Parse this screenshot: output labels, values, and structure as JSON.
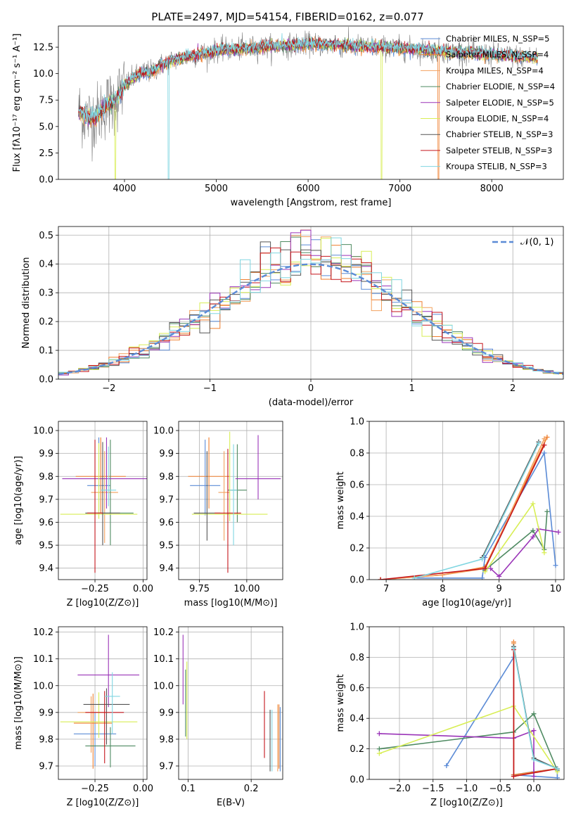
{
  "page": {
    "title": "PLATE=2497, MJD=54154, FIBERID=0162, z=0.077"
  },
  "colors": {
    "Chabrier MILES": "#5b8bd6",
    "Salpeter MILES": "#ef7e2e",
    "Kroupa MILES": "#f2a15e",
    "Chabrier ELODIE": "#4e8a61",
    "Salpeter ELODIE": "#9a34b8",
    "Kroupa ELODIE": "#d8ee55",
    "Chabrier STELIB": "#555555",
    "Salpeter STELIB": "#c5161c",
    "Kroupa STELIB": "#80d6e1",
    "data": "#808080",
    "normal": "#5b8bd6"
  },
  "chart_data": [
    {
      "id": "spectrum",
      "type": "line",
      "title": "PLATE=2497, MJD=54154, FIBERID=0162, z=0.077",
      "xlabel": "wavelength [Angstrom, rest frame]",
      "ylabel": "Flux [fλ10⁻¹⁷ erg cm⁻² s⁻¹ A⁻¹]",
      "xlim": [
        3280,
        8780
      ],
      "ylim": [
        0,
        14.5
      ],
      "xticks": [
        4000,
        5000,
        6000,
        7000,
        8000
      ],
      "xtick_labels": [
        "4000",
        "5000",
        "6000",
        "7000",
        "8000"
      ],
      "yticks": [
        0,
        2.5,
        5,
        7.5,
        10,
        12.5
      ],
      "ytick_labels": [
        "0.0",
        "2.5",
        "5.0",
        "7.5",
        "10.0",
        "12.5"
      ],
      "legend": [
        "Chabrier MILES, N_SSP=5",
        "Salpeter MILES, N_SSP=4",
        "Kroupa MILES, N_SSP=4",
        "Chabrier ELODIE, N_SSP=4",
        "Salpeter ELODIE, N_SSP=5",
        "Kroupa ELODIE, N_SSP=4",
        "Chabrier STELIB, N_SSP=3",
        "Salpeter STELIB, N_SSP=3",
        "Kroupa STELIB, N_SSP=3"
      ],
      "legend_placement": "right",
      "continuum": {
        "x": [
          3500,
          3600,
          3700,
          3800,
          3900,
          4000,
          4100,
          4200,
          4300,
          4400,
          4500,
          4700,
          5000,
          5500,
          6000,
          6500,
          7000,
          7500,
          8000,
          8500
        ],
        "y": [
          6.5,
          5.8,
          6.0,
          7.0,
          7.4,
          8.9,
          9.6,
          10.1,
          10.2,
          10.8,
          11.2,
          11.6,
          12.2,
          12.5,
          12.8,
          12.6,
          12.4,
          12.1,
          11.8,
          11.5
        ]
      },
      "drops": [
        {
          "model": "Kroupa ELODIE",
          "x": 3900
        },
        {
          "model": "Kroupa STELIB",
          "x": 4480
        },
        {
          "model": "Kroupa ELODIE",
          "x": 6800
        },
        {
          "model": "Salpeter MILES",
          "x": 7420
        }
      ]
    },
    {
      "id": "residuals",
      "type": "histogram",
      "xlabel": "(data-model)/error",
      "ylabel": "Normed distribution",
      "xlim": [
        -2.5,
        2.5
      ],
      "ylim": [
        0,
        0.53
      ],
      "xticks": [
        -2,
        -1,
        0,
        1,
        2
      ],
      "xtick_labels": [
        "−2",
        "−1",
        "0",
        "1",
        "2"
      ],
      "yticks": [
        0,
        0.1,
        0.2,
        0.3,
        0.4,
        0.5
      ],
      "ytick_labels": [
        "0.0",
        "0.1",
        "0.2",
        "0.3",
        "0.4",
        "0.5"
      ],
      "bin_width": 0.1,
      "legend": [
        "𝒩(0, 1)"
      ],
      "legend_placement": "top-right",
      "normal_curve": {
        "mean": 0,
        "sigma": 1
      }
    },
    {
      "id": "age-vs-Z",
      "type": "errorbar",
      "xlabel": "Z [log10(Z/Z⊙)]",
      "ylabel": "age  [log10(age/yr)]",
      "xlim": [
        -0.44,
        0.02
      ],
      "ylim": [
        9.35,
        10.04
      ],
      "xticks": [
        -0.25,
        0
      ],
      "xtick_labels": [
        "−0.25",
        "0.00"
      ],
      "yticks": [
        9.4,
        9.5,
        9.6,
        9.7,
        9.8,
        9.9,
        10.0
      ],
      "ytick_labels": [
        "9.4",
        "9.5",
        "9.6",
        "9.7",
        "9.8",
        "9.9",
        "10.0"
      ],
      "points": [
        {
          "model": "Chabrier MILES",
          "x": -0.23,
          "xerr": 0.06,
          "y": 9.76,
          "yerr": [
            0.11,
            0.21
          ]
        },
        {
          "model": "Salpeter MILES",
          "x": -0.22,
          "xerr": 0.13,
          "y": 9.8,
          "yerr": [
            0.16,
            0.17
          ]
        },
        {
          "model": "Kroupa MILES",
          "x": -0.2,
          "xerr": 0.07,
          "y": 9.73,
          "yerr": [
            0.22,
            0.18
          ]
        },
        {
          "model": "Chabrier ELODIE",
          "x": -0.17,
          "xerr": 0.12,
          "y": 9.64,
          "yerr": [
            0.14,
            0.32
          ]
        },
        {
          "model": "Salpeter ELODIE",
          "x": -0.19,
          "xerr": 0.23,
          "y": 9.79,
          "yerr": [
            0.13,
            0.18
          ]
        },
        {
          "model": "Kroupa ELODIE",
          "x": -0.23,
          "xerr": 0.2,
          "y": 9.635,
          "yerr": [
            0.02,
            0.31
          ]
        },
        {
          "model": "Chabrier STELIB",
          "x": -0.21,
          "xerr": 0.09,
          "y": 9.64,
          "yerr": [
            0.14,
            0.31
          ]
        },
        {
          "model": "Salpeter STELIB",
          "x": -0.25,
          "xerr": 0.04,
          "y": 9.64,
          "yerr": [
            0.26,
            0.32
          ]
        },
        {
          "model": "Kroupa STELIB",
          "x": -0.18,
          "xerr": 0.04,
          "y": 9.74,
          "yerr": [
            0.07,
            0.19
          ]
        }
      ]
    },
    {
      "id": "age-vs-mass",
      "type": "errorbar",
      "xlabel": "mass [log10(M/M⊙)]",
      "ylabel": "",
      "xlim": [
        9.64,
        10.19
      ],
      "ylim": [
        9.35,
        10.04
      ],
      "xticks": [
        9.75,
        10.0
      ],
      "xtick_labels": [
        "9.75",
        "10.00"
      ],
      "yticks": [
        9.4,
        9.5,
        9.6,
        9.7,
        9.8,
        9.9,
        10.0
      ],
      "ytick_labels": [
        "9.4",
        "9.5",
        "9.6",
        "9.7",
        "9.8",
        "9.9",
        "10.0"
      ],
      "points": [
        {
          "model": "Chabrier MILES",
          "x": 9.78,
          "xerr": 0.08,
          "y": 9.76,
          "yerr": [
            0.13,
            0.2
          ]
        },
        {
          "model": "Salpeter MILES",
          "x": 9.8,
          "xerr": 0.11,
          "y": 9.8,
          "yerr": [
            0.14,
            0.17
          ]
        },
        {
          "model": "Kroupa MILES",
          "x": 9.88,
          "xerr": 0.03,
          "y": 9.73,
          "yerr": [
            0.21,
            0.18
          ]
        },
        {
          "model": "Chabrier ELODIE",
          "x": 9.95,
          "xerr": 0.05,
          "y": 9.74,
          "yerr": [
            0.14,
            0.2
          ]
        },
        {
          "model": "Salpeter ELODIE",
          "x": 10.06,
          "xerr": 0.12,
          "y": 9.79,
          "yerr": [
            0.09,
            0.19
          ]
        },
        {
          "model": "Kroupa ELODIE",
          "x": 9.91,
          "xerr": 0.2,
          "y": 9.635,
          "yerr": [
            0.03,
            0.36
          ]
        },
        {
          "model": "Chabrier STELIB",
          "x": 9.79,
          "xerr": 0.07,
          "y": 9.64,
          "yerr": [
            0.12,
            0.27
          ]
        },
        {
          "model": "Salpeter STELIB",
          "x": 9.9,
          "xerr": 0.07,
          "y": 9.64,
          "yerr": [
            0.26,
            0.28
          ]
        },
        {
          "model": "Kroupa STELIB",
          "x": 9.93,
          "xerr": 0.02,
          "y": 9.74,
          "yerr": [
            0.24,
            0.2
          ]
        }
      ]
    },
    {
      "id": "mass-weight-vs-age",
      "type": "line",
      "xlabel": "age  [log10(age/yr)]",
      "ylabel": "mass weight",
      "xlim": [
        6.7,
        10.15
      ],
      "ylim": [
        0,
        1.0
      ],
      "xticks": [
        7,
        8,
        9,
        10
      ],
      "xtick_labels": [
        "7",
        "8",
        "9",
        "10"
      ],
      "yticks": [
        0,
        0.2,
        0.4,
        0.6,
        0.8,
        1.0
      ],
      "ytick_labels": [
        "0.0",
        "0.2",
        "0.4",
        "0.6",
        "0.8",
        "1.0"
      ],
      "series": [
        {
          "model": "Chabrier MILES",
          "x": [
            7.5,
            8.7,
            8.75,
            9.8,
            10.0
          ],
          "y": [
            0.01,
            0.01,
            0.14,
            0.8,
            0.09
          ]
        },
        {
          "model": "Salpeter MILES",
          "x": [
            6.9,
            8.0,
            8.75,
            9.85
          ],
          "y": [
            0.0,
            0.03,
            0.08,
            0.9
          ]
        },
        {
          "model": "Kroupa MILES",
          "x": [
            6.9,
            8.0,
            8.75,
            9.8
          ],
          "y": [
            0.0,
            0.03,
            0.07,
            0.89
          ]
        },
        {
          "model": "Chabrier ELODIE",
          "x": [
            8.75,
            9.6,
            9.8,
            9.85
          ],
          "y": [
            0.06,
            0.31,
            0.19,
            0.43
          ]
        },
        {
          "model": "Salpeter ELODIE",
          "x": [
            8.85,
            9.0,
            9.6,
            9.7,
            10.05
          ],
          "y": [
            0.07,
            0.02,
            0.27,
            0.32,
            0.3
          ]
        },
        {
          "model": "Kroupa ELODIE",
          "x": [
            8.75,
            9.6,
            9.8
          ],
          "y": [
            0.05,
            0.48,
            0.17
          ]
        },
        {
          "model": "Chabrier STELIB",
          "x": [
            8.7,
            9.7
          ],
          "y": [
            0.14,
            0.87
          ]
        },
        {
          "model": "Salpeter STELIB",
          "x": [
            6.9,
            8.75,
            9.8
          ],
          "y": [
            0.0,
            0.07,
            0.85
          ]
        },
        {
          "model": "Kroupa STELIB",
          "x": [
            7.5,
            8.7,
            9.7
          ],
          "y": [
            0.01,
            0.13,
            0.86
          ]
        }
      ]
    },
    {
      "id": "mass-vs-Z",
      "type": "errorbar",
      "xlabel": "Z [log10(Z/Z⊙)]",
      "ylabel": "mass [log10(M/M⊙)]",
      "xlim": [
        -0.44,
        0.02
      ],
      "ylim": [
        9.65,
        10.22
      ],
      "xticks": [
        -0.25,
        0
      ],
      "xtick_labels": [
        "−0.25",
        "0.00"
      ],
      "yticks": [
        9.7,
        9.8,
        9.9,
        10.0,
        10.1,
        10.2
      ],
      "ytick_labels": [
        "9.7",
        "9.8",
        "9.9",
        "10.0",
        "10.1",
        "10.2"
      ],
      "points": [
        {
          "model": "Chabrier MILES",
          "x": -0.25,
          "xerr": 0.11,
          "y": 9.82,
          "yerr": [
            0.12,
            0.08
          ]
        },
        {
          "model": "Salpeter MILES",
          "x": -0.26,
          "xerr": 0.1,
          "y": 9.86,
          "yerr": [
            0.17,
            0.11
          ]
        },
        {
          "model": "Kroupa MILES",
          "x": -0.27,
          "xerr": 0.07,
          "y": 9.9,
          "yerr": [
            0.15,
            0.06
          ]
        },
        {
          "model": "Chabrier ELODIE",
          "x": -0.17,
          "xerr": 0.13,
          "y": 9.775,
          "yerr": [
            0.08,
            0.07
          ]
        },
        {
          "model": "Salpeter ELODIE",
          "x": -0.18,
          "xerr": 0.16,
          "y": 10.04,
          "yerr": [
            0.12,
            0.15
          ]
        },
        {
          "model": "Kroupa ELODIE",
          "x": -0.23,
          "xerr": 0.2,
          "y": 9.865,
          "yerr": [
            0.06,
            0.11
          ]
        },
        {
          "model": "Chabrier STELIB",
          "x": -0.19,
          "xerr": 0.12,
          "y": 9.93,
          "yerr": [
            0.15,
            0.06
          ]
        },
        {
          "model": "Salpeter STELIB",
          "x": -0.2,
          "xerr": 0.1,
          "y": 9.9,
          "yerr": [
            0.19,
            0.08
          ]
        },
        {
          "model": "Kroupa STELIB",
          "x": -0.16,
          "xerr": 0.04,
          "y": 9.96,
          "yerr": [
            0.14,
            0.09
          ]
        }
      ]
    },
    {
      "id": "mass-vs-EBV",
      "type": "errorbar",
      "xlabel": "E(B-V)",
      "ylabel": "",
      "xlim": [
        0.085,
        0.25
      ],
      "ylim": [
        9.65,
        10.22
      ],
      "xticks": [
        0.1,
        0.2
      ],
      "xtick_labels": [
        "0.1",
        "0.2"
      ],
      "yticks": [
        9.7,
        9.8,
        9.9,
        10.0,
        10.1,
        10.2
      ],
      "ytick_labels": [
        "9.7",
        "9.8",
        "9.9",
        "10.0",
        "10.1",
        "10.2"
      ],
      "points": [
        {
          "model": "Chabrier MILES",
          "x": 0.246,
          "xerr": 0,
          "y": 9.82,
          "yerr": [
            0.14,
            0.1
          ]
        },
        {
          "model": "Salpeter MILES",
          "x": 0.244,
          "xerr": 0,
          "y": 9.81,
          "yerr": [
            0.12,
            0.12
          ]
        },
        {
          "model": "Kroupa MILES",
          "x": 0.242,
          "xerr": 0,
          "y": 9.8,
          "yerr": [
            0.12,
            0.13
          ]
        },
        {
          "model": "Chabrier ELODIE",
          "x": 0.096,
          "xerr": 0,
          "y": 9.94,
          "yerr": [
            0.13,
            0.12
          ]
        },
        {
          "model": "Salpeter ELODIE",
          "x": 0.092,
          "xerr": 0,
          "y": 10.04,
          "yerr": [
            0.11,
            0.15
          ]
        },
        {
          "model": "Kroupa ELODIE",
          "x": 0.098,
          "xerr": 0,
          "y": 9.92,
          "yerr": [
            0.12,
            0.17
          ]
        },
        {
          "model": "Chabrier STELIB",
          "x": 0.23,
          "xerr": 0,
          "y": 9.81,
          "yerr": [
            0.13,
            0.1
          ]
        },
        {
          "model": "Salpeter STELIB",
          "x": 0.221,
          "xerr": 0,
          "y": 9.85,
          "yerr": [
            0.12,
            0.13
          ]
        },
        {
          "model": "Kroupa STELIB",
          "x": 0.233,
          "xerr": 0,
          "y": 9.8,
          "yerr": [
            0.12,
            0.11
          ]
        }
      ]
    },
    {
      "id": "mass-weight-vs-Z",
      "type": "line",
      "xlabel": "Z [log10(Z/Z⊙)]",
      "ylabel": "mass weight",
      "xlim": [
        -2.45,
        0.45
      ],
      "ylim": [
        0,
        1.0
      ],
      "xticks": [
        -2.0,
        -1.5,
        -1.0,
        -0.5,
        0.0
      ],
      "xtick_labels": [
        "−2.0",
        "−1.5",
        "−1.0",
        "−0.5",
        "0.0"
      ],
      "yticks": [
        0,
        0.2,
        0.4,
        0.6,
        0.8,
        1.0
      ],
      "ytick_labels": [
        "0.0",
        "0.2",
        "0.4",
        "0.6",
        "0.8",
        "1.0"
      ],
      "series": [
        {
          "model": "Chabrier MILES",
          "x": [
            -1.3,
            -0.3,
            -0.3,
            0.35,
            0.35,
            0.0,
            -0.3
          ],
          "y": [
            0.09,
            0.8,
            0.03,
            0.01,
            0.07,
            0.05,
            0.03
          ]
        },
        {
          "model": "Salpeter MILES",
          "x": [
            -0.3,
            -0.3,
            0.35
          ],
          "y": [
            0.9,
            0.03,
            0.07
          ]
        },
        {
          "model": "Kroupa MILES",
          "x": [
            -0.3,
            -0.3,
            0.35
          ],
          "y": [
            0.89,
            0.02,
            0.07
          ]
        },
        {
          "model": "Chabrier ELODIE",
          "x": [
            -2.3,
            -0.3,
            0.0,
            0.35
          ],
          "y": [
            0.2,
            0.31,
            0.43,
            0.06
          ]
        },
        {
          "model": "Salpeter ELODIE",
          "x": [
            -2.3,
            -0.3,
            0.0,
            0.0
          ],
          "y": [
            0.3,
            0.27,
            0.32,
            0.02
          ]
        },
        {
          "model": "Kroupa ELODIE",
          "x": [
            -2.3,
            -0.3,
            0.35
          ],
          "y": [
            0.17,
            0.48,
            0.05
          ]
        },
        {
          "model": "Chabrier STELIB",
          "x": [
            -0.3,
            0.0,
            0.35
          ],
          "y": [
            0.87,
            0.14,
            0.07
          ]
        },
        {
          "model": "Salpeter STELIB",
          "x": [
            -0.3,
            -0.3,
            0.35
          ],
          "y": [
            0.85,
            0.02,
            0.07
          ]
        },
        {
          "model": "Kroupa STELIB",
          "x": [
            -0.3,
            0.0,
            0.35
          ],
          "y": [
            0.86,
            0.13,
            0.07
          ]
        }
      ]
    }
  ]
}
